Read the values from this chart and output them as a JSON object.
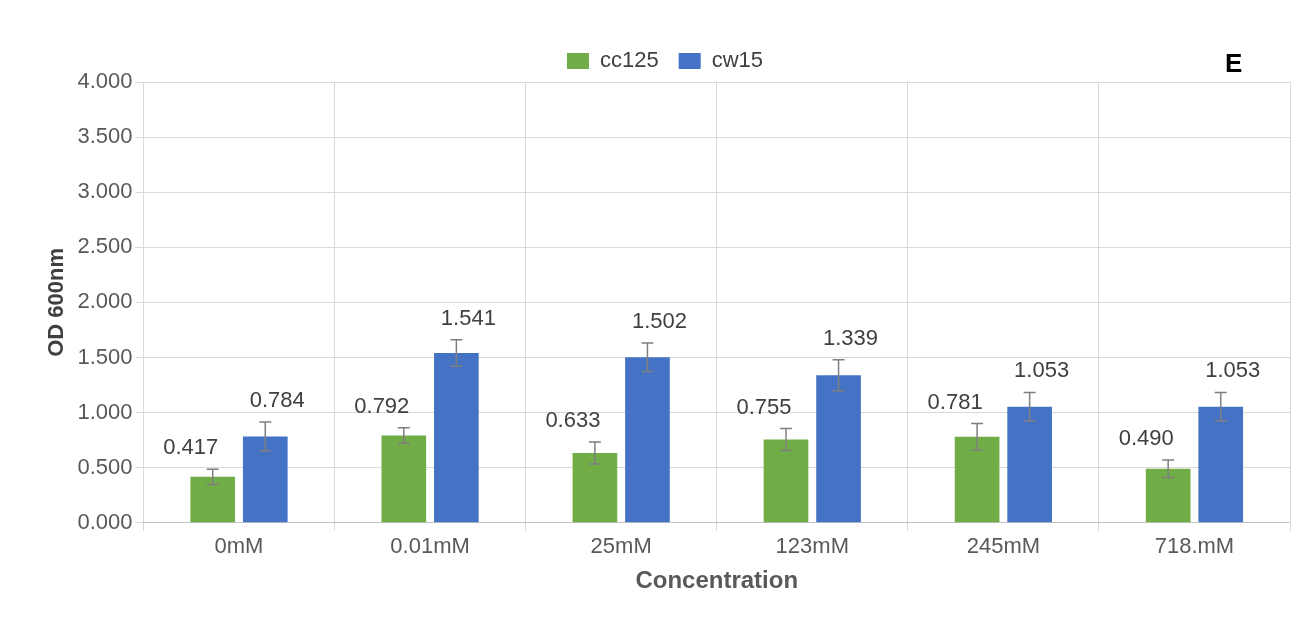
{
  "chart_data": {
    "type": "bar",
    "xlabel": "Concentration",
    "ylabel": "OD 600nm",
    "annotations": [
      "E"
    ],
    "categories": [
      "0mM",
      "0.01mM",
      "25mM",
      "123mM",
      "245mM",
      "718.mM"
    ],
    "series": [
      {
        "name": "cc125",
        "color": "#70ad47",
        "values": [
          0.417,
          0.792,
          0.633,
          0.755,
          0.781,
          0.49
        ],
        "value_labels": [
          "0.417",
          "0.792",
          "0.633",
          "0.755",
          "0.781",
          "0.490"
        ],
        "errors": [
          0.07,
          0.07,
          0.1,
          0.1,
          0.12,
          0.08
        ]
      },
      {
        "name": "cw15",
        "color": "#4472c4",
        "values": [
          0.784,
          1.541,
          1.502,
          1.339,
          1.053,
          1.053
        ],
        "value_labels": [
          "0.784",
          "1.541",
          "1.502",
          "1.339",
          "1.053",
          "1.053"
        ],
        "errors": [
          0.13,
          0.12,
          0.13,
          0.14,
          0.13,
          0.13
        ]
      }
    ],
    "ylim": [
      0,
      4
    ],
    "yticks": [
      {
        "value": 0,
        "label": "0.000"
      },
      {
        "value": 0.5,
        "label": "0.500"
      },
      {
        "value": 1,
        "label": "1.000"
      },
      {
        "value": 1.5,
        "label": "1.500"
      },
      {
        "value": 2,
        "label": "2.000"
      },
      {
        "value": 2.5,
        "label": "2.500"
      },
      {
        "value": 3,
        "label": "3.000"
      },
      {
        "value": 3.5,
        "label": "3.500"
      },
      {
        "value": 4,
        "label": "4.000"
      }
    ],
    "grid": true,
    "legend": "top"
  }
}
